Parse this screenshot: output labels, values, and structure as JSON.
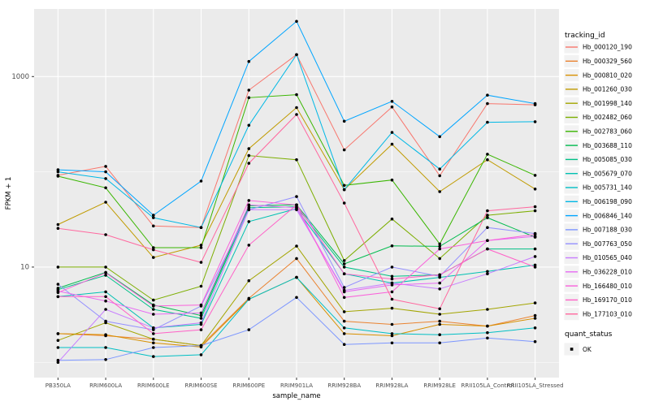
{
  "chart_data": {
    "type": "line",
    "title": "",
    "xlabel": "sample_name",
    "ylabel": "FPKM + 1",
    "y_scale": "log10",
    "y_ticks": [
      10,
      1000
    ],
    "y_tick_labels": [
      "10",
      "1000"
    ],
    "y_minor_gridlines": [
      1,
      100
    ],
    "y_log_domain": [
      -0.16,
      3.71
    ],
    "grid": true,
    "point_marker": "black-dot",
    "categories": [
      "PB350LA",
      "RRIM600LA",
      "RRIM600LE",
      "RRIM600SE",
      "RRIM600PE",
      "RRIM901LA",
      "RRIM928BA",
      "RRIM928LA",
      "RRIM928LE",
      "RRII105LA_Control",
      "RRII105LA_Stressed"
    ],
    "legend": {
      "title": "tracking_id",
      "position": "right"
    },
    "quant_legend": {
      "title": "quant_status",
      "label": "OK",
      "marker_color": "#000000"
    },
    "series": [
      {
        "name": "Hb_000120_190",
        "color": "#F8766D",
        "values": [
          92,
          114,
          27,
          26,
          720,
          1700,
          170,
          480,
          91,
          520,
          505
        ]
      },
      {
        "name": "Hb_000329_560",
        "color": "#EA8331",
        "values": [
          2.0,
          1.9,
          1.75,
          1.5,
          4.7,
          12.3,
          2.7,
          2.5,
          2.7,
          2.4,
          3.1
        ]
      },
      {
        "name": "Hb_000810_020",
        "color": "#D89000",
        "values": [
          2.0,
          1.95,
          1.6,
          1.45,
          4.6,
          7.8,
          2.0,
          1.9,
          2.5,
          2.4,
          2.9
        ]
      },
      {
        "name": "Hb_001260_030",
        "color": "#C09B00",
        "values": [
          28,
          48,
          12.6,
          17,
          175,
          472,
          65,
          195,
          62,
          134,
          66
        ]
      },
      {
        "name": "Hb_001998_140",
        "color": "#A3A500",
        "values": [
          1.7,
          2.6,
          1.75,
          1.5,
          7.2,
          16.6,
          3.4,
          3.7,
          3.2,
          3.6,
          4.2
        ]
      },
      {
        "name": "Hb_002482_060",
        "color": "#7CAE00",
        "values": [
          10,
          10,
          4.5,
          6.3,
          148,
          134,
          11.7,
          32,
          12.3,
          35,
          39
        ]
      },
      {
        "name": "Hb_002783_060",
        "color": "#39B600",
        "values": [
          90,
          68,
          16,
          16,
          600,
          645,
          72,
          82,
          17.5,
          153,
          92
        ]
      },
      {
        "name": "Hb_003688_110",
        "color": "#00BB4E",
        "values": [
          6.0,
          8.8,
          4.0,
          3.1,
          44,
          45,
          10.8,
          16.7,
          16.5,
          33,
          20.6
        ]
      },
      {
        "name": "Hb_005085_030",
        "color": "#00C087",
        "values": [
          5.8,
          8.2,
          3.6,
          2.9,
          42,
          43,
          10,
          8.0,
          8.3,
          15.5,
          15.5
        ]
      },
      {
        "name": "Hb_005679_070",
        "color": "#00C0B2",
        "values": [
          4.9,
          5.5,
          2.3,
          2.5,
          30,
          41,
          8.5,
          6.8,
          7.8,
          9.0,
          10.5
        ]
      },
      {
        "name": "Hb_005731_140",
        "color": "#00BFC4",
        "values": [
          1.43,
          1.43,
          1.15,
          1.2,
          4.6,
          7.8,
          2.3,
          2.0,
          1.95,
          2.05,
          2.3
        ]
      },
      {
        "name": "Hb_006198_090",
        "color": "#00B8E5",
        "values": [
          100,
          85,
          33,
          26,
          308,
          1700,
          65,
          259,
          107,
          331,
          336
        ]
      },
      {
        "name": "Hb_006846_140",
        "color": "#00A5FF",
        "values": [
          105,
          100,
          35,
          80,
          1440,
          3800,
          340,
          550,
          234,
          638,
          520
        ]
      },
      {
        "name": "Hb_007188_030",
        "color": "#7C96FF",
        "values": [
          1.05,
          1.07,
          1.43,
          1.5,
          2.2,
          4.8,
          1.54,
          1.6,
          1.6,
          1.8,
          1.65
        ]
      },
      {
        "name": "Hb_007763_050",
        "color": "#9590FF",
        "values": [
          6.6,
          2.7,
          2.2,
          3.9,
          40,
          55,
          6.1,
          10,
          8.0,
          26,
          22.5
        ]
      },
      {
        "name": "Hb_010565_040",
        "color": "#C77CFF",
        "values": [
          1.0,
          3.6,
          2.3,
          2.6,
          40,
          40,
          5.7,
          6.8,
          5.9,
          8.5,
          12.9
        ]
      },
      {
        "name": "Hb_036228_010",
        "color": "#E76BF3",
        "values": [
          5.6,
          4.4,
          3.2,
          3.3,
          45,
          42,
          5.5,
          6.5,
          6.8,
          19,
          21
        ]
      },
      {
        "name": "Hb_166480_010",
        "color": "#FA62DB",
        "values": [
          5.4,
          8.7,
          3.9,
          4.0,
          50,
          45,
          4.8,
          5.5,
          15.5,
          19,
          22
        ]
      },
      {
        "name": "Hb_169170_010",
        "color": "#FF61C7",
        "values": [
          4.9,
          4.9,
          2.0,
          2.2,
          17,
          45,
          8.5,
          7.5,
          8.3,
          15.5,
          10
        ]
      },
      {
        "name": "Hb_177103_010",
        "color": "#FF689F",
        "values": [
          25.5,
          21.9,
          15.2,
          11.2,
          123,
          400,
          47,
          4.6,
          3.65,
          39,
          43
        ]
      }
    ]
  },
  "style": {
    "panel_bg": "#EBEBEB",
    "grid_color": "#FFFFFF",
    "tick_color": "#333333",
    "tick_label_color": "#4D4D4D",
    "axis_title_color": "#000000",
    "legend_key_bg": "#F2F2F2",
    "point_color": "#000000"
  }
}
